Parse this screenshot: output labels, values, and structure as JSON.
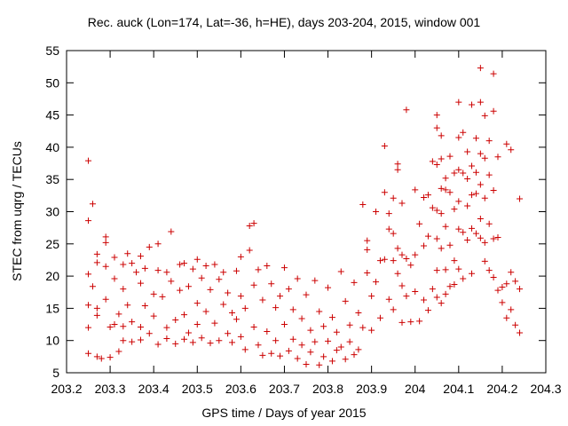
{
  "chart_data": {
    "type": "scatter",
    "title": "Rec. auck (Lon=174, Lat=-36, h=HE), days 203-204, 2015, window 001",
    "xlabel": "GPS time / Days of year 2015",
    "ylabel": "STEC from uqrg / TECUs",
    "xlim": [
      203.2,
      204.3
    ],
    "ylim": [
      5,
      55
    ],
    "x_ticks": [
      "203.2",
      "203.3",
      "203.4",
      "203.5",
      "203.6",
      "203.7",
      "203.8",
      "203.9",
      "204",
      "204.1",
      "204.2",
      "204.3"
    ],
    "y_ticks": [
      "5",
      "10",
      "15",
      "20",
      "25",
      "30",
      "35",
      "40",
      "45",
      "50",
      "55"
    ],
    "grid": false,
    "marker": "+",
    "color": "#cc0000",
    "series": [
      {
        "points": [
          [
            203.25,
            37.9
          ],
          [
            203.25,
            28.6
          ],
          [
            203.25,
            20.3
          ],
          [
            203.26,
            18.4
          ],
          [
            203.25,
            15.5
          ],
          [
            203.25,
            12.0
          ],
          [
            203.25,
            8.0
          ],
          [
            203.26,
            31.2
          ],
          [
            203.27,
            23.4
          ],
          [
            203.27,
            22.1
          ],
          [
            203.27,
            15.0
          ],
          [
            203.27,
            13.9
          ],
          [
            203.27,
            7.5
          ],
          [
            203.28,
            7.2
          ],
          [
            203.29,
            26.1
          ],
          [
            203.29,
            25.2
          ],
          [
            203.29,
            21.5
          ],
          [
            203.29,
            16.4
          ],
          [
            203.3,
            12.1
          ],
          [
            203.3,
            7.4
          ],
          [
            203.31,
            22.9
          ],
          [
            203.31,
            19.6
          ],
          [
            203.31,
            12.5
          ],
          [
            203.32,
            8.3
          ],
          [
            203.32,
            14.1
          ],
          [
            203.33,
            21.8
          ],
          [
            203.33,
            18.0
          ],
          [
            203.33,
            12.2
          ],
          [
            203.33,
            10.0
          ],
          [
            203.34,
            23.5
          ],
          [
            203.34,
            15.5
          ],
          [
            203.35,
            22.0
          ],
          [
            203.35,
            12.9
          ],
          [
            203.35,
            9.8
          ],
          [
            203.36,
            20.6
          ],
          [
            203.37,
            23.1
          ],
          [
            203.37,
            18.9
          ],
          [
            203.37,
            12.1
          ],
          [
            203.37,
            10.1
          ],
          [
            203.38,
            21.2
          ],
          [
            203.38,
            15.4
          ],
          [
            203.39,
            24.5
          ],
          [
            203.39,
            11.1
          ],
          [
            203.4,
            17.2
          ],
          [
            203.4,
            13.8
          ],
          [
            203.41,
            25.0
          ],
          [
            203.41,
            20.9
          ],
          [
            203.41,
            9.4
          ],
          [
            203.42,
            16.8
          ],
          [
            203.43,
            20.6
          ],
          [
            203.43,
            12.0
          ],
          [
            203.43,
            10.3
          ],
          [
            203.44,
            26.9
          ],
          [
            203.44,
            19.2
          ],
          [
            203.45,
            13.2
          ],
          [
            203.45,
            9.5
          ],
          [
            203.46,
            21.8
          ],
          [
            203.46,
            17.8
          ],
          [
            203.47,
            22.0
          ],
          [
            203.47,
            14.0
          ],
          [
            203.47,
            10.2
          ],
          [
            203.48,
            18.4
          ],
          [
            203.48,
            11.2
          ],
          [
            203.49,
            21.1
          ],
          [
            203.49,
            9.7
          ],
          [
            203.5,
            22.6
          ],
          [
            203.5,
            15.8
          ],
          [
            203.5,
            12.5
          ],
          [
            203.51,
            19.7
          ],
          [
            203.51,
            10.4
          ],
          [
            203.52,
            21.6
          ],
          [
            203.52,
            14.5
          ],
          [
            203.53,
            17.9
          ],
          [
            203.53,
            9.6
          ],
          [
            203.54,
            21.8
          ],
          [
            203.54,
            12.7
          ],
          [
            203.55,
            19.5
          ],
          [
            203.55,
            10.0
          ],
          [
            203.56,
            20.6
          ],
          [
            203.56,
            15.6
          ],
          [
            203.57,
            17.4
          ],
          [
            203.57,
            11.1
          ],
          [
            203.58,
            14.3
          ],
          [
            203.58,
            9.7
          ],
          [
            203.59,
            20.8
          ],
          [
            203.59,
            13.3
          ],
          [
            203.6,
            23.0
          ],
          [
            203.6,
            16.9
          ],
          [
            203.6,
            10.6
          ],
          [
            203.61,
            15.0
          ],
          [
            203.61,
            8.6
          ],
          [
            203.62,
            24.0
          ],
          [
            203.62,
            27.8
          ],
          [
            203.63,
            28.2
          ],
          [
            203.63,
            18.6
          ],
          [
            203.63,
            12.1
          ],
          [
            203.64,
            21.0
          ],
          [
            203.64,
            9.3
          ],
          [
            203.65,
            16.3
          ],
          [
            203.65,
            7.7
          ],
          [
            203.66,
            21.6
          ],
          [
            203.66,
            11.4
          ],
          [
            203.67,
            18.8
          ],
          [
            203.67,
            8.0
          ],
          [
            203.68,
            15.1
          ],
          [
            203.68,
            10.0
          ],
          [
            203.69,
            16.9
          ],
          [
            203.69,
            7.6
          ],
          [
            203.7,
            21.3
          ],
          [
            203.7,
            12.5
          ],
          [
            203.71,
            18.0
          ],
          [
            203.71,
            8.4
          ],
          [
            203.72,
            14.8
          ],
          [
            203.72,
            10.2
          ],
          [
            203.73,
            19.6
          ],
          [
            203.73,
            7.2
          ],
          [
            203.74,
            13.4
          ],
          [
            203.74,
            9.3
          ],
          [
            203.75,
            17.1
          ],
          [
            203.75,
            6.3
          ],
          [
            203.76,
            11.6
          ],
          [
            203.76,
            8.2
          ],
          [
            203.77,
            19.3
          ],
          [
            203.77,
            9.8
          ],
          [
            203.78,
            14.5
          ],
          [
            203.78,
            6.2
          ],
          [
            203.79,
            12.2
          ],
          [
            203.79,
            7.5
          ],
          [
            203.8,
            18.2
          ],
          [
            203.8,
            9.9
          ],
          [
            203.81,
            13.6
          ],
          [
            203.81,
            6.8
          ],
          [
            203.82,
            11.3
          ],
          [
            203.82,
            8.5
          ],
          [
            203.83,
            20.7
          ],
          [
            203.83,
            9.0
          ],
          [
            203.84,
            16.1
          ],
          [
            203.84,
            7.1
          ],
          [
            203.85,
            12.4
          ],
          [
            203.85,
            9.8
          ],
          [
            203.86,
            19.0
          ],
          [
            203.86,
            7.8
          ],
          [
            203.87,
            14.3
          ],
          [
            203.87,
            8.6
          ],
          [
            203.88,
            12.0
          ],
          [
            203.88,
            31.1
          ],
          [
            203.89,
            20.5
          ],
          [
            203.89,
            25.5
          ],
          [
            203.89,
            24.1
          ],
          [
            203.9,
            16.9
          ],
          [
            203.9,
            11.6
          ],
          [
            203.91,
            30.0
          ],
          [
            203.91,
            19.1
          ],
          [
            203.92,
            13.5
          ],
          [
            203.92,
            22.4
          ],
          [
            203.93,
            40.2
          ],
          [
            203.93,
            33.0
          ],
          [
            203.93,
            22.6
          ],
          [
            203.94,
            29.7
          ],
          [
            203.94,
            27.3
          ],
          [
            203.94,
            16.4
          ],
          [
            203.95,
            32.1
          ],
          [
            203.95,
            26.6
          ],
          [
            203.95,
            22.4
          ],
          [
            203.95,
            14.8
          ],
          [
            203.96,
            37.4
          ],
          [
            203.96,
            36.5
          ],
          [
            203.96,
            24.3
          ],
          [
            203.96,
            20.4
          ],
          [
            203.97,
            31.3
          ],
          [
            203.97,
            23.3
          ],
          [
            203.97,
            18.5
          ],
          [
            203.97,
            12.8
          ],
          [
            203.98,
            45.8
          ],
          [
            203.98,
            22.7
          ],
          [
            203.98,
            16.9
          ],
          [
            203.99,
            21.7
          ],
          [
            203.99,
            12.9
          ],
          [
            204.0,
            33.4
          ],
          [
            204.0,
            23.3
          ],
          [
            204.0,
            17.6
          ],
          [
            204.01,
            28.1
          ],
          [
            204.01,
            13.0
          ],
          [
            204.02,
            32.2
          ],
          [
            204.02,
            24.7
          ],
          [
            204.02,
            16.3
          ],
          [
            204.03,
            32.6
          ],
          [
            204.03,
            26.2
          ],
          [
            204.03,
            14.7
          ],
          [
            204.04,
            37.8
          ],
          [
            204.04,
            30.6
          ],
          [
            204.04,
            18.0
          ],
          [
            204.05,
            45.0
          ],
          [
            204.05,
            43.0
          ],
          [
            204.05,
            37.3
          ],
          [
            204.05,
            30.2
          ],
          [
            204.05,
            25.8
          ],
          [
            204.05,
            20.9
          ],
          [
            204.05,
            16.7
          ],
          [
            204.06,
            41.8
          ],
          [
            204.06,
            38.2
          ],
          [
            204.06,
            33.6
          ],
          [
            204.06,
            29.7
          ],
          [
            204.06,
            24.3
          ],
          [
            204.06,
            15.8
          ],
          [
            204.07,
            35.2
          ],
          [
            204.07,
            33.4
          ],
          [
            204.07,
            27.7
          ],
          [
            204.07,
            21.0
          ],
          [
            204.07,
            17.2
          ],
          [
            204.08,
            38.6
          ],
          [
            204.08,
            33.0
          ],
          [
            204.08,
            24.8
          ],
          [
            204.08,
            18.4
          ],
          [
            204.09,
            36.0
          ],
          [
            204.09,
            30.4
          ],
          [
            204.09,
            22.4
          ],
          [
            204.09,
            18.7
          ],
          [
            204.1,
            47.0
          ],
          [
            204.1,
            41.5
          ],
          [
            204.1,
            36.5
          ],
          [
            204.1,
            31.6
          ],
          [
            204.1,
            27.3
          ],
          [
            204.1,
            21.1
          ],
          [
            204.11,
            42.3
          ],
          [
            204.11,
            36.0
          ],
          [
            204.11,
            26.8
          ],
          [
            204.11,
            19.6
          ],
          [
            204.12,
            39.3
          ],
          [
            204.12,
            35.1
          ],
          [
            204.12,
            30.9
          ],
          [
            204.12,
            25.6
          ],
          [
            204.13,
            46.6
          ],
          [
            204.13,
            37.1
          ],
          [
            204.13,
            32.6
          ],
          [
            204.13,
            27.4
          ],
          [
            204.13,
            20.4
          ],
          [
            204.14,
            41.4
          ],
          [
            204.14,
            36.1
          ],
          [
            204.14,
            32.8
          ],
          [
            204.14,
            26.6
          ],
          [
            204.15,
            52.3
          ],
          [
            204.15,
            47.0
          ],
          [
            204.15,
            39.0
          ],
          [
            204.15,
            34.2
          ],
          [
            204.15,
            28.9
          ],
          [
            204.15,
            25.9
          ],
          [
            204.16,
            44.9
          ],
          [
            204.16,
            38.3
          ],
          [
            204.16,
            32.1
          ],
          [
            204.16,
            25.2
          ],
          [
            204.16,
            22.3
          ],
          [
            204.17,
            41.0
          ],
          [
            204.17,
            35.7
          ],
          [
            204.17,
            28.1
          ],
          [
            204.17,
            20.9
          ],
          [
            204.18,
            51.4
          ],
          [
            204.18,
            45.6
          ],
          [
            204.18,
            33.3
          ],
          [
            204.18,
            25.8
          ],
          [
            204.18,
            19.8
          ],
          [
            204.19,
            38.5
          ],
          [
            204.19,
            26.0
          ],
          [
            204.19,
            17.8
          ],
          [
            204.2,
            18.3
          ],
          [
            204.2,
            15.9
          ],
          [
            204.21,
            40.5
          ],
          [
            204.21,
            18.8
          ],
          [
            204.21,
            13.5
          ],
          [
            204.22,
            39.6
          ],
          [
            204.22,
            20.6
          ],
          [
            204.22,
            14.8
          ],
          [
            204.23,
            19.2
          ],
          [
            204.23,
            12.4
          ],
          [
            204.24,
            32.0
          ],
          [
            204.24,
            18.0
          ],
          [
            204.24,
            11.2
          ]
        ]
      }
    ]
  }
}
